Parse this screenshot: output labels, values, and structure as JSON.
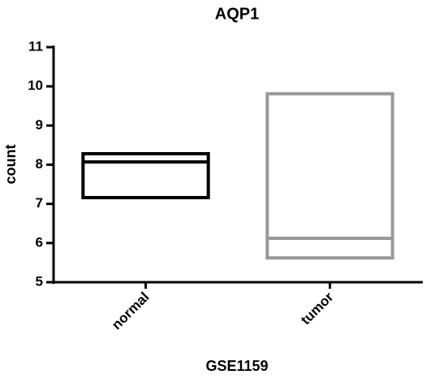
{
  "chart_data": {
    "type": "floating-bar",
    "title": "AQP1",
    "x_label": "GSE1159",
    "y_label": "count",
    "categories": [
      "normal",
      "tumor"
    ],
    "min": [
      7.16,
      5.62
    ],
    "max": [
      8.28,
      9.81
    ],
    "median": [
      8.07,
      6.12
    ],
    "colors": [
      "#000000",
      "#999999"
    ],
    "ylim": [
      5,
      11
    ],
    "yticks": [
      5,
      6,
      7,
      8,
      9,
      10,
      11
    ]
  }
}
